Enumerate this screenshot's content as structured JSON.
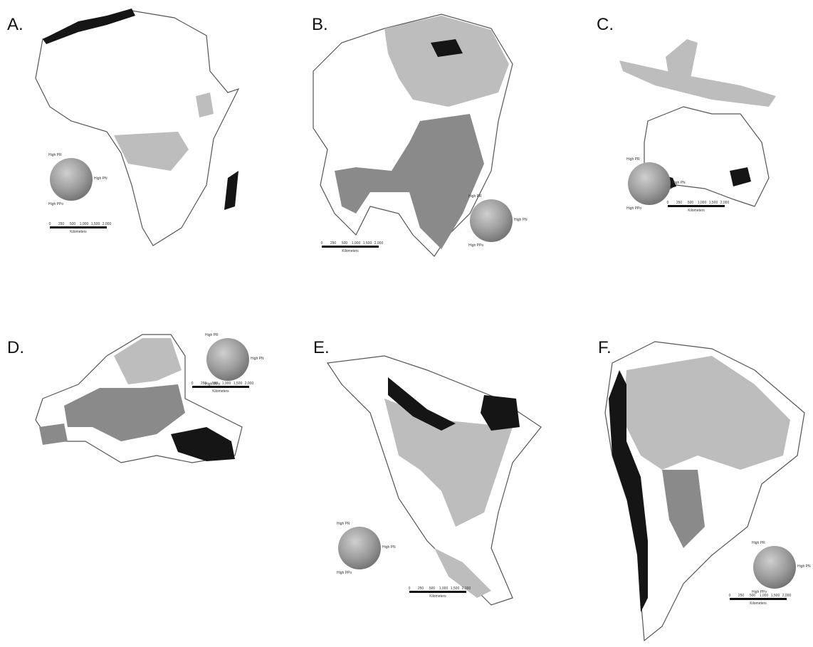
{
  "panels": [
    {
      "label": "A."
    },
    {
      "label": "B."
    },
    {
      "label": "C."
    },
    {
      "label": "D."
    },
    {
      "label": "E."
    },
    {
      "label": "F."
    }
  ],
  "legend": {
    "top": "High PR",
    "right": "High PN",
    "bottom": "High PPo"
  },
  "scale": {
    "ticks": [
      "0",
      "250",
      "500",
      "1,000",
      "1,500",
      "2,000"
    ],
    "unit": "Kilometers"
  }
}
